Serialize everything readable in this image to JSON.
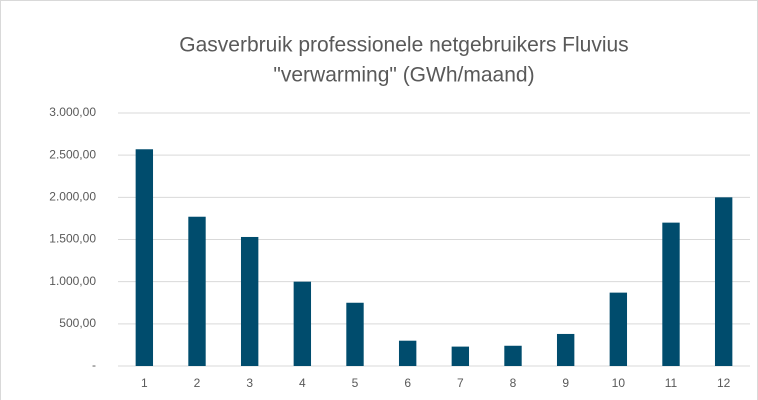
{
  "chart_data": {
    "type": "bar",
    "title": [
      "Gasverbruik professionele netgebruikers Fluvius",
      "\"verwarming\" (GWh/maand)"
    ],
    "categories": [
      "1",
      "2",
      "3",
      "4",
      "5",
      "6",
      "7",
      "8",
      "9",
      "10",
      "11",
      "12"
    ],
    "values": [
      2570,
      1770,
      1530,
      1000,
      750,
      300,
      230,
      240,
      380,
      870,
      1700,
      2000
    ],
    "color": "#004c6d",
    "ylim": [
      0,
      3000
    ],
    "yticks": [
      {
        "value": 0,
        "label": "-"
      },
      {
        "value": 500,
        "label": "500,00"
      },
      {
        "value": 1000,
        "label": "1.000,00"
      },
      {
        "value": 1500,
        "label": "1.500,00"
      },
      {
        "value": 2000,
        "label": "2.000,00"
      },
      {
        "value": 2500,
        "label": "2.500,00"
      },
      {
        "value": 3000,
        "label": "3.000,00"
      }
    ],
    "grid": true
  }
}
